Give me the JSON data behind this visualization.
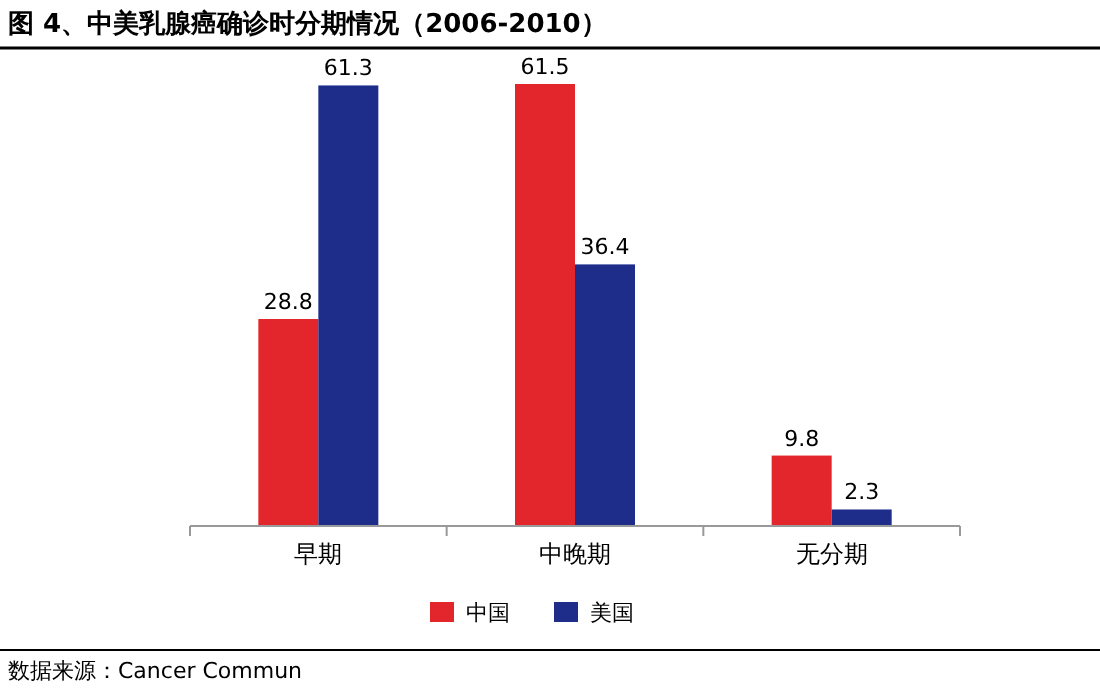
{
  "chart_data": {
    "type": "bar",
    "title": "图 4、中美乳腺癌确诊时分期情况（2006-2010）",
    "categories": [
      "早期",
      "中晚期",
      "无分期"
    ],
    "series": [
      {
        "name": "中国",
        "color": "#e3262b",
        "values": [
          28.8,
          61.5,
          9.8
        ]
      },
      {
        "name": "美国",
        "color": "#1e2d8a",
        "values": [
          61.3,
          36.4,
          2.3
        ]
      }
    ],
    "data_labels": true,
    "legend": "bottom",
    "annotations": [
      "数据来源：Cancer Commun"
    ]
  }
}
